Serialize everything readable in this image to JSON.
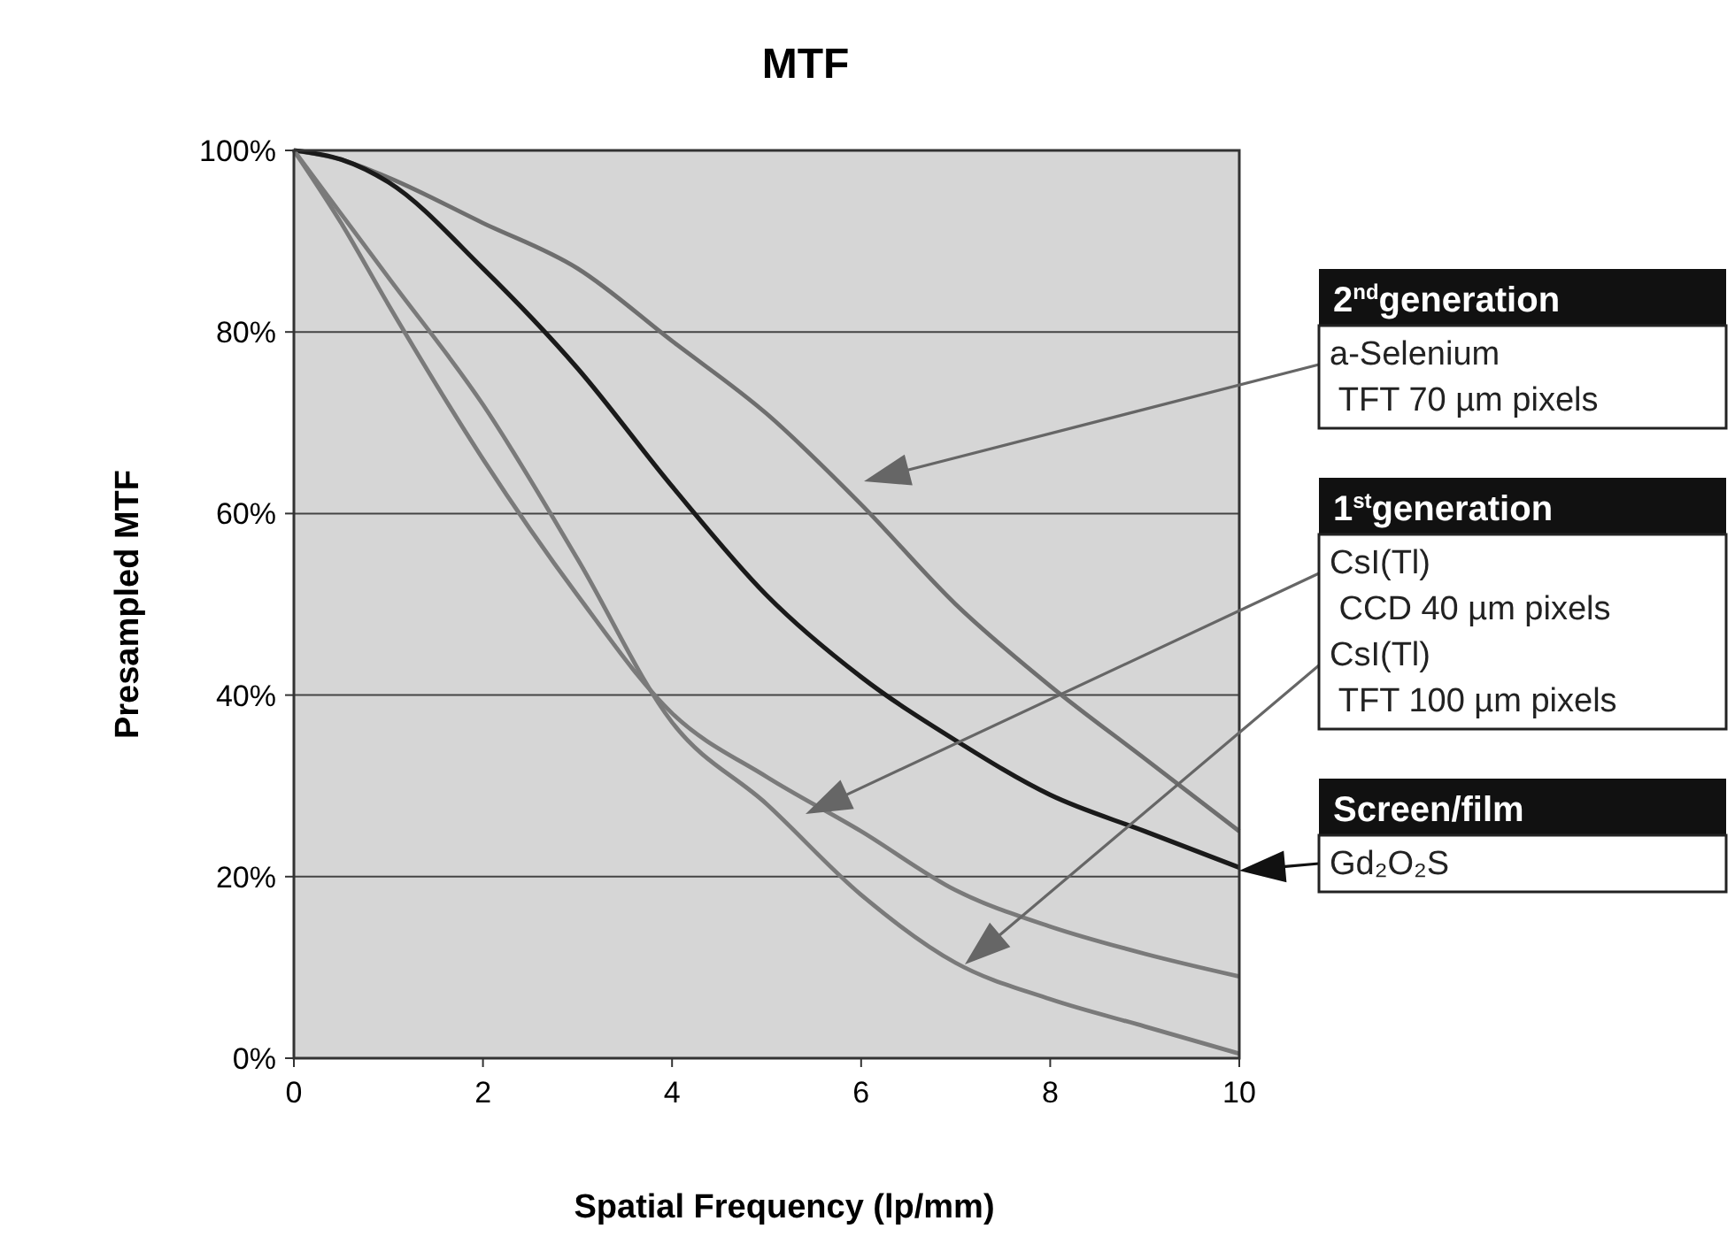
{
  "chart_data": {
    "type": "line",
    "title": "MTF",
    "xlabel": "Spatial Frequency (lp/mm)",
    "ylabel": "Presampled MTF",
    "x": [
      0,
      0.5,
      1,
      2,
      3,
      4,
      5,
      6,
      7,
      8,
      9,
      10
    ],
    "series": [
      {
        "color": "#6e6e6e",
        "values": [
          100,
          99,
          97,
          92,
          87,
          79,
          71,
          61,
          50,
          41,
          33,
          25
        ]
      },
      {
        "color": "#1a1a1a",
        "values": [
          100,
          99,
          96.5,
          87,
          76,
          63,
          51,
          42,
          35,
          29,
          25,
          21
        ]
      },
      {
        "color": "#7a7a7a",
        "values": [
          100,
          92,
          83,
          66,
          51,
          38,
          31,
          25,
          18.5,
          14.5,
          11.5,
          9
        ]
      },
      {
        "color": "#7a7a7a",
        "values": [
          100,
          93,
          86,
          72,
          55,
          37,
          28,
          18,
          10.5,
          6.5,
          3.5,
          0.5
        ]
      }
    ],
    "xlim": [
      0,
      10
    ],
    "xticks": [
      0,
      2,
      4,
      6,
      8,
      10
    ],
    "ylim": [
      0,
      100
    ],
    "yticks": [
      {
        "value": 0,
        "label": "0%"
      },
      {
        "value": 20,
        "label": "20%"
      },
      {
        "value": 40,
        "label": "40%"
      },
      {
        "value": 60,
        "label": "60%"
      },
      {
        "value": 80,
        "label": "80%"
      },
      {
        "value": 100,
        "label": "100%"
      }
    ],
    "grid": "y",
    "marker": "none",
    "line_style": "solid",
    "annotations": [
      "2$^{nd}$generation",
      "a-Selenium\n TFT 70 µm pixels",
      "1$^{st}$generation",
      "CsI(Tl)\n CCD 40 µm pixels",
      "CsI(Tl)\n TFT 100 µm pixels",
      "Screen/film",
      "Gd₂O₂S"
    ]
  }
}
